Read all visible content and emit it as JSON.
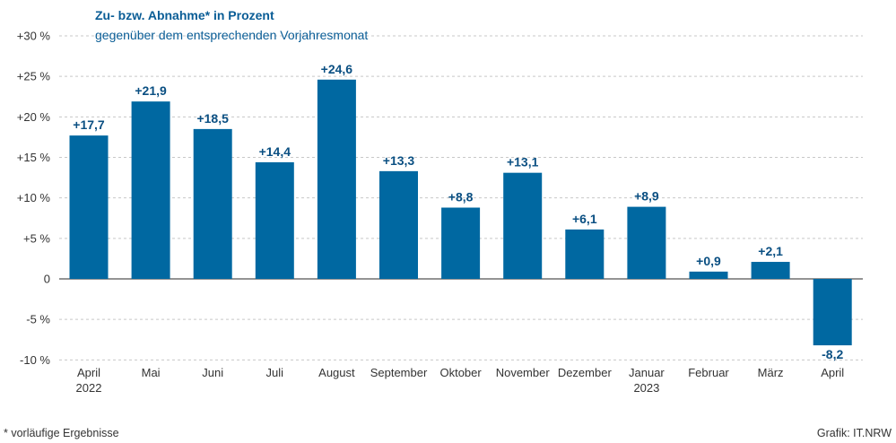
{
  "colors": {
    "bar": "#0068a1",
    "title": "#0a5d96",
    "label": "#0a4f82",
    "grid": "#c8c8c8",
    "axis": "#555555",
    "text": "#333333"
  },
  "chart_data": {
    "type": "bar",
    "title": "Zu- bzw. Abnahme* in Prozent",
    "subtitle": "gegenüber dem entsprechenden Vorjahresmonat",
    "categories": [
      "April",
      "Mai",
      "Juni",
      "Juli",
      "August",
      "September",
      "Oktober",
      "November",
      "Dezember",
      "Januar",
      "Februar",
      "März",
      "April"
    ],
    "category_years": [
      "2022",
      "",
      "",
      "",
      "",
      "",
      "",
      "",
      "",
      "2023",
      "",
      "",
      ""
    ],
    "values": [
      17.7,
      21.9,
      18.5,
      14.4,
      24.6,
      13.3,
      8.8,
      13.1,
      6.1,
      8.9,
      0.9,
      2.1,
      -8.2
    ],
    "value_labels": [
      "+17,7",
      "+21,9",
      "+18,5",
      "+14,4",
      "+24,6",
      "+13,3",
      "+8,8",
      "+13,1",
      "+6,1",
      "+8,9",
      "+0,9",
      "+2,1",
      "-8,2"
    ],
    "ylim": [
      -10,
      30
    ],
    "yticks": [
      -10,
      -5,
      0,
      5,
      10,
      15,
      20,
      25,
      30
    ],
    "ytick_labels": [
      "-10 %",
      "-5 %",
      "0",
      "+5 %",
      "+10 %",
      "+15 %",
      "+20 %",
      "+25 %",
      "+30 %"
    ],
    "grid": true,
    "legend": "none"
  },
  "footer": {
    "note": "*  vorläufige Ergebnisse",
    "source": "Grafik: IT.NRW"
  }
}
